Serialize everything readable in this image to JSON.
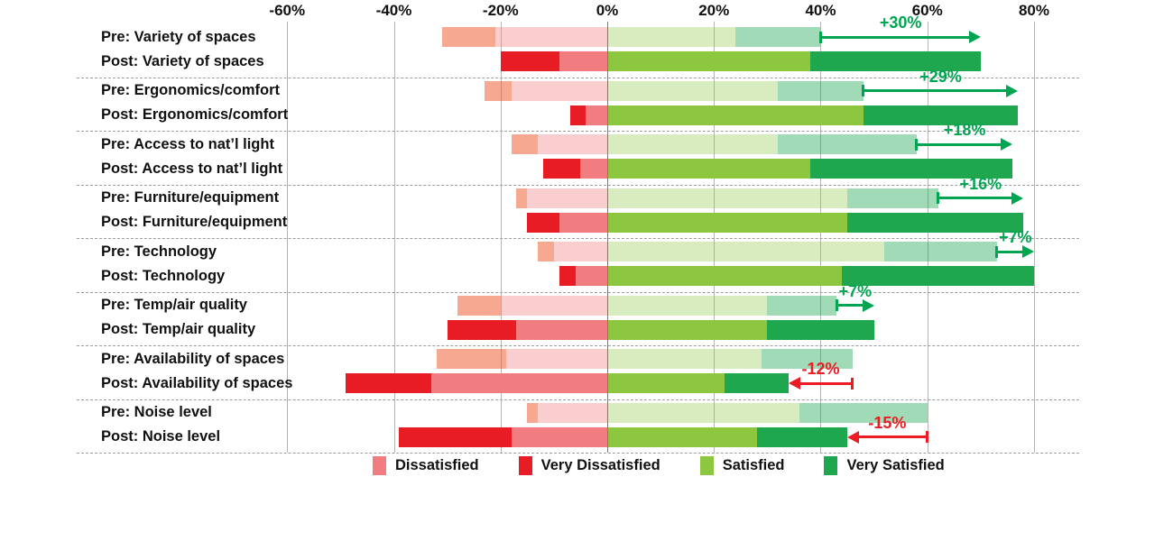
{
  "chart_data": {
    "type": "bar",
    "variant": "horizontal-diverging-stacked",
    "title": "",
    "axis": {
      "min": -60,
      "max": 80,
      "ticks": [
        {
          "value": -60,
          "label": "-60%"
        },
        {
          "value": -40,
          "label": "-40%"
        },
        {
          "value": -20,
          "label": "-20%"
        },
        {
          "value": 0,
          "label": "0%"
        },
        {
          "value": 20,
          "label": "20%"
        },
        {
          "value": 40,
          "label": "40%"
        },
        {
          "value": 60,
          "label": "60%"
        },
        {
          "value": 80,
          "label": "80%"
        }
      ]
    },
    "palette": {
      "post": {
        "very_dissatisfied": "#e81c25",
        "dissatisfied": "#f27d80",
        "satisfied": "#8dc63f",
        "very_satisfied": "#1fa750"
      },
      "pre": {
        "very_dissatisfied": "rgba(237,88,45,0.52)",
        "dissatisfied": "rgba(242,125,128,0.38)",
        "satisfied": "rgba(141,198,63,0.33)",
        "very_satisfied": "rgba(31,167,80,0.42)"
      }
    },
    "annotation_colors": {
      "positive": "#00a551",
      "negative": "#ed1c24"
    },
    "legend": [
      {
        "key": "dissatisfied",
        "label": "Dissatisfied",
        "color": "#f27d80"
      },
      {
        "key": "very_dissatisfied",
        "label": "Very Dissatisfied",
        "color": "#e81c25"
      },
      {
        "key": "satisfied",
        "label": "Satisfied",
        "color": "#8dc63f"
      },
      {
        "key": "very_satisfied",
        "label": "Very Satisfied",
        "color": "#1fa750"
      }
    ],
    "categories": [
      {
        "name": "Variety of spaces",
        "pre": {
          "label": "Pre: Variety of spaces",
          "very_dissatisfied": 10,
          "dissatisfied": 21,
          "satisfied": 24,
          "very_satisfied": 16
        },
        "post": {
          "label": "Post: Variety of spaces",
          "very_dissatisfied": 11,
          "dissatisfied": 9,
          "satisfied": 38,
          "very_satisfied": 32
        },
        "annotation": {
          "text": "+30%",
          "sign": "positive",
          "row": "pre",
          "from": 40,
          "to": 70
        }
      },
      {
        "name": "Ergonomics/comfort",
        "pre": {
          "label": "Pre: Ergonomics/comfort",
          "very_dissatisfied": 5,
          "dissatisfied": 18,
          "satisfied": 32,
          "very_satisfied": 16
        },
        "post": {
          "label": "Post: Ergonomics/comfort",
          "very_dissatisfied": 3,
          "dissatisfied": 4,
          "satisfied": 48,
          "very_satisfied": 29
        },
        "annotation": {
          "text": "+29%",
          "sign": "positive",
          "row": "pre",
          "from": 48,
          "to": 77
        }
      },
      {
        "name": "Access to nat’l light",
        "pre": {
          "label": "Pre: Access to nat’l light",
          "very_dissatisfied": 5,
          "dissatisfied": 13,
          "satisfied": 32,
          "very_satisfied": 26
        },
        "post": {
          "label": "Post: Access to nat’l light",
          "very_dissatisfied": 7,
          "dissatisfied": 5,
          "satisfied": 38,
          "very_satisfied": 38
        },
        "annotation": {
          "text": "+18%",
          "sign": "positive",
          "row": "pre",
          "from": 58,
          "to": 76
        }
      },
      {
        "name": "Furniture/equipment",
        "pre": {
          "label": "Pre: Furniture/equipment",
          "very_dissatisfied": 2,
          "dissatisfied": 15,
          "satisfied": 45,
          "very_satisfied": 17
        },
        "post": {
          "label": "Post: Furniture/equipment",
          "very_dissatisfied": 6,
          "dissatisfied": 9,
          "satisfied": 45,
          "very_satisfied": 33
        },
        "annotation": {
          "text": "+16%",
          "sign": "positive",
          "row": "pre",
          "from": 62,
          "to": 78
        }
      },
      {
        "name": "Technology",
        "pre": {
          "label": "Pre: Technology",
          "very_dissatisfied": 3,
          "dissatisfied": 10,
          "satisfied": 52,
          "very_satisfied": 21
        },
        "post": {
          "label": "Post: Technology",
          "very_dissatisfied": 3,
          "dissatisfied": 6,
          "satisfied": 44,
          "very_satisfied": 36
        },
        "annotation": {
          "text": "+7%",
          "sign": "positive",
          "row": "pre",
          "from": 73,
          "to": 80
        }
      },
      {
        "name": "Temp/air quality",
        "pre": {
          "label": "Pre: Temp/air quality",
          "very_dissatisfied": 8,
          "dissatisfied": 20,
          "satisfied": 30,
          "very_satisfied": 13
        },
        "post": {
          "label": "Post: Temp/air quality",
          "very_dissatisfied": 13,
          "dissatisfied": 17,
          "satisfied": 30,
          "very_satisfied": 20
        },
        "annotation": {
          "text": "+7%",
          "sign": "positive",
          "row": "pre",
          "from": 43,
          "to": 50
        }
      },
      {
        "name": "Availability of spaces",
        "pre": {
          "label": "Pre: Availability of spaces",
          "very_dissatisfied": 13,
          "dissatisfied": 19,
          "satisfied": 29,
          "very_satisfied": 17
        },
        "post": {
          "label": "Post: Availability of spaces",
          "very_dissatisfied": 16,
          "dissatisfied": 33,
          "satisfied": 22,
          "very_satisfied": 12
        },
        "annotation": {
          "text": "-12%",
          "sign": "negative",
          "row": "post",
          "from": 46,
          "to": 34
        }
      },
      {
        "name": "Noise level",
        "pre": {
          "label": "Pre: Noise level",
          "very_dissatisfied": 2,
          "dissatisfied": 13,
          "satisfied": 36,
          "very_satisfied": 24
        },
        "post": {
          "label": "Post: Noise level",
          "very_dissatisfied": 21,
          "dissatisfied": 18,
          "satisfied": 28,
          "very_satisfied": 17
        },
        "annotation": {
          "text": "-15%",
          "sign": "negative",
          "row": "post",
          "from": 60,
          "to": 45
        }
      }
    ]
  }
}
